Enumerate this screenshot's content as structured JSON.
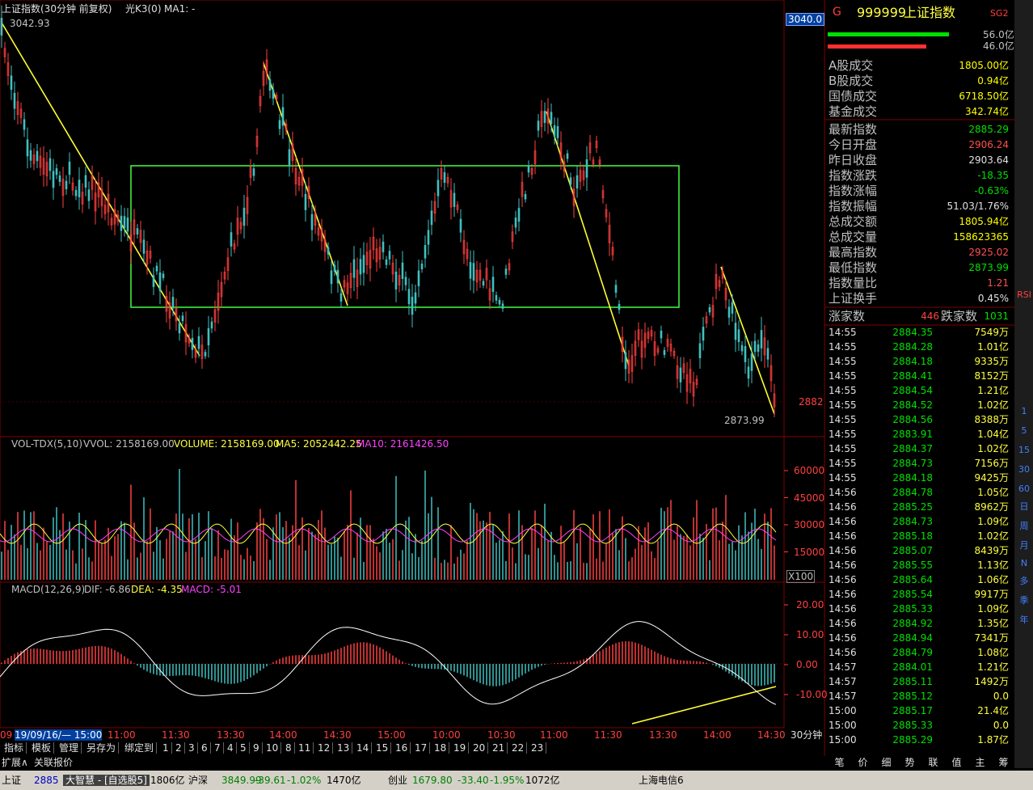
{
  "header": {
    "title": "上证指数(30分钟 前复权)",
    "indicator": "光K3(0)",
    "ma": "MA1: -"
  },
  "price_pane": {
    "high_label": "3042.93",
    "axis_top": "3040.0",
    "axis_label": "2882",
    "low_label": "2873.99"
  },
  "volume_pane": {
    "legend": [
      "VOL-TDX(5,10)",
      "VVOL: 2158169.00",
      "VOLUME: 2158169.00",
      "MA5: 2052442.25",
      "MA10: 2161426.50"
    ],
    "ticks": [
      "60000",
      "45000",
      "30000",
      "15000"
    ],
    "unit": "X100"
  },
  "macd_pane": {
    "legend": [
      "MACD(12,26,9)",
      "DIF: -6.86",
      "DEA: -4.35",
      "MACD: -5.01"
    ],
    "ticks": [
      "20.00",
      "10.00",
      "0.00",
      "-10.00"
    ]
  },
  "time_axis": [
    "09",
    "19/09/16/— 15:00",
    "11:00",
    "11:30",
    "13:30",
    "14:00",
    "14:30",
    "15:00",
    "10:00",
    "10:30",
    "11:00",
    "11:30",
    "13:30",
    "14:00",
    "14:30"
  ],
  "period": "30分钟",
  "tabs": [
    "指标",
    "模板",
    "管理",
    "另存为",
    "绑定到",
    "1",
    "2",
    "3",
    "6",
    "7",
    "4",
    "5",
    "9",
    "10",
    "8",
    "11",
    "12",
    "13",
    "14",
    "15",
    "16",
    "17",
    "18",
    "19",
    "20",
    "21",
    "22",
    "23"
  ],
  "ext": [
    "扩展∧",
    "关联报价"
  ],
  "quote": {
    "tag": "G",
    "code": "999999",
    "name": "上证指数",
    "sg": "SG2",
    "bars": [
      "56.0亿",
      "46.0亿"
    ],
    "rows": [
      {
        "label": "A股成交",
        "value": "1805.00亿",
        "color": "#ffff00"
      },
      {
        "label": "B股成交",
        "value": "0.94亿",
        "color": "#ffff00"
      },
      {
        "label": "国债成交",
        "value": "6718.50亿",
        "color": "#ffff00"
      },
      {
        "label": "基金成交",
        "value": "342.74亿",
        "color": "#ffff00"
      },
      {
        "label": "最新指数",
        "value": "2885.29",
        "color": "#00e000"
      },
      {
        "label": "今日开盘",
        "value": "2906.24",
        "color": "#ff5050"
      },
      {
        "label": "昨日收盘",
        "value": "2903.64",
        "color": "#e0e0e0"
      },
      {
        "label": "指数涨跌",
        "value": "-18.35",
        "color": "#00e000"
      },
      {
        "label": "指数涨幅",
        "value": "-0.63%",
        "color": "#00e000"
      },
      {
        "label": "指数振幅",
        "value": "51.03/1.76%",
        "color": "#e0e0e0"
      },
      {
        "label": "总成交额",
        "value": "1805.94亿",
        "color": "#ffff00"
      },
      {
        "label": "总成交量",
        "value": "158623365",
        "color": "#ffff00"
      },
      {
        "label": "最高指数",
        "value": "2925.02",
        "color": "#ff5050"
      },
      {
        "label": "最低指数",
        "value": "2873.99",
        "color": "#00e000"
      },
      {
        "label": "指数量比",
        "value": "1.21",
        "color": "#ff5050"
      },
      {
        "label": "上证换手",
        "value": "0.45%",
        "color": "#e0e0e0"
      }
    ],
    "breadth": {
      "up_label": "涨家数",
      "up": "446",
      "down_label": "跌家数",
      "down": "1031"
    },
    "ticks": [
      [
        "14:55",
        "2884.35",
        "7549万"
      ],
      [
        "14:55",
        "2884.28",
        "1.01亿"
      ],
      [
        "14:55",
        "2884.18",
        "9335万"
      ],
      [
        "14:55",
        "2884.41",
        "8152万"
      ],
      [
        "14:55",
        "2884.54",
        "1.21亿"
      ],
      [
        "14:55",
        "2884.52",
        "1.02亿"
      ],
      [
        "14:55",
        "2884.56",
        "8388万"
      ],
      [
        "14:55",
        "2883.91",
        "1.04亿"
      ],
      [
        "14:55",
        "2884.37",
        "1.02亿"
      ],
      [
        "14:55",
        "2884.73",
        "7156万"
      ],
      [
        "14:55",
        "2884.18",
        "9425万"
      ],
      [
        "14:56",
        "2884.78",
        "1.05亿"
      ],
      [
        "14:56",
        "2885.25",
        "8962万"
      ],
      [
        "14:56",
        "2884.73",
        "1.09亿"
      ],
      [
        "14:56",
        "2885.18",
        "1.02亿"
      ],
      [
        "14:56",
        "2885.07",
        "8439万"
      ],
      [
        "14:56",
        "2885.55",
        "1.13亿"
      ],
      [
        "14:56",
        "2885.64",
        "1.06亿"
      ],
      [
        "14:56",
        "2885.54",
        "9917万"
      ],
      [
        "14:56",
        "2885.33",
        "1.09亿"
      ],
      [
        "14:56",
        "2884.92",
        "1.35亿"
      ],
      [
        "14:56",
        "2884.94",
        "7341万"
      ],
      [
        "14:56",
        "2884.79",
        "1.08亿"
      ],
      [
        "14:57",
        "2884.01",
        "1.21亿"
      ],
      [
        "14:57",
        "2885.11",
        "1492万"
      ],
      [
        "14:57",
        "2885.12",
        "0.0"
      ],
      [
        "15:00",
        "2885.17",
        "21.4亿"
      ],
      [
        "15:00",
        "2885.33",
        "0.0"
      ],
      [
        "15:00",
        "2885.29",
        "1.87亿"
      ]
    ],
    "bottom_tabs": [
      "笔",
      "价",
      "细",
      "势",
      "联",
      "值",
      "主",
      "筹"
    ]
  },
  "toolbar": [
    "RSI",
    "1",
    "5",
    "15",
    "30",
    "60",
    "日",
    "周",
    "月",
    "N",
    "多",
    "季",
    "年"
  ],
  "status": [
    "上证",
    "2885",
    "大智慧 - [自选股5]",
    "1806亿",
    "沪深",
    "3849.99",
    "-39.61",
    "-1.02%",
    "1470亿",
    "创业",
    "1679.80",
    "-33.40",
    "-1.95%",
    "1072亿",
    "上海电信6"
  ]
}
